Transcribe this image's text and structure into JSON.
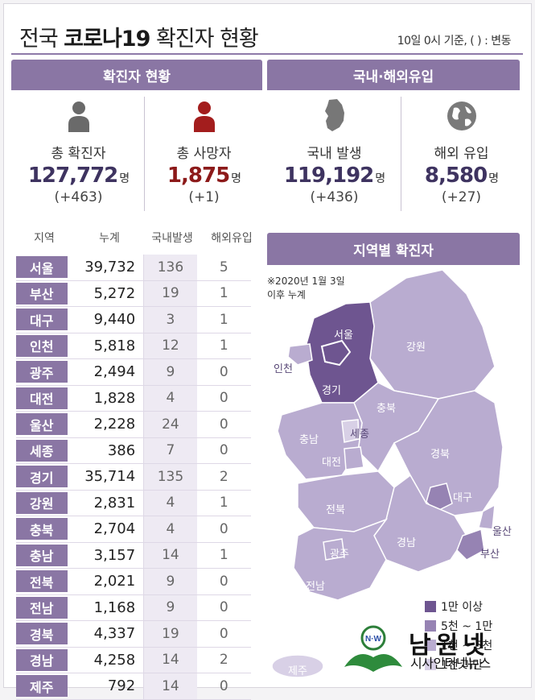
{
  "header": {
    "title_prefix": "전국",
    "title_bold": "코로나19",
    "title_suffix": "확진자 현황",
    "basis": "10일 0시 기준, ( ) : 변동"
  },
  "sections": {
    "status": "확진자 현황",
    "domestic_overseas": "국내·해외유입",
    "regional": "지역별 확진자"
  },
  "stats": [
    {
      "label": "총 확진자",
      "value": "127,772",
      "unit": "명",
      "change": "(+463)",
      "icon": "person-icon"
    },
    {
      "label": "총 사망자",
      "value": "1,875",
      "unit": "명",
      "change": "(+1)",
      "icon": "person-icon-red"
    },
    {
      "label": "국내 발생",
      "value": "119,192",
      "unit": "명",
      "change": "(+436)",
      "icon": "korea-map-icon"
    },
    {
      "label": "해외 유입",
      "value": "8,580",
      "unit": "명",
      "change": "(+27)",
      "icon": "globe-icon"
    }
  ],
  "table": {
    "columns": [
      "지역",
      "누계",
      "국내발생",
      "해외유입"
    ],
    "rows": [
      {
        "region": "서울",
        "total": "39,732",
        "domestic": "136",
        "import": "5"
      },
      {
        "region": "부산",
        "total": "5,272",
        "domestic": "19",
        "import": "1"
      },
      {
        "region": "대구",
        "total": "9,440",
        "domestic": "3",
        "import": "1"
      },
      {
        "region": "인천",
        "total": "5,818",
        "domestic": "12",
        "import": "1"
      },
      {
        "region": "광주",
        "total": "2,494",
        "domestic": "9",
        "import": "0"
      },
      {
        "region": "대전",
        "total": "1,828",
        "domestic": "4",
        "import": "0"
      },
      {
        "region": "울산",
        "total": "2,228",
        "domestic": "24",
        "import": "0"
      },
      {
        "region": "세종",
        "total": "386",
        "domestic": "7",
        "import": "0"
      },
      {
        "region": "경기",
        "total": "35,714",
        "domestic": "135",
        "import": "2"
      },
      {
        "region": "강원",
        "total": "2,831",
        "domestic": "4",
        "import": "1"
      },
      {
        "region": "충북",
        "total": "2,704",
        "domestic": "4",
        "import": "0"
      },
      {
        "region": "충남",
        "total": "3,157",
        "domestic": "14",
        "import": "1"
      },
      {
        "region": "전북",
        "total": "2,021",
        "domestic": "9",
        "import": "0"
      },
      {
        "region": "전남",
        "total": "1,168",
        "domestic": "9",
        "import": "0"
      },
      {
        "region": "경북",
        "total": "4,337",
        "domestic": "19",
        "import": "0"
      },
      {
        "region": "경남",
        "total": "4,258",
        "domestic": "14",
        "import": "2"
      },
      {
        "region": "제주",
        "total": "792",
        "domestic": "14",
        "import": "0"
      }
    ]
  },
  "map": {
    "note_line1": "※2020년 1월 3일",
    "note_line2": "이후 누계",
    "labels": {
      "seoul": "서울",
      "incheon": "인천",
      "gyeonggi": "경기",
      "gangwon": "강원",
      "chungbuk": "충북",
      "sejong": "세종",
      "chungnam": "충남",
      "daejeon": "대전",
      "gyeongbuk": "경북",
      "daegu": "대구",
      "jeonbuk": "전북",
      "ulsan": "울산",
      "gyeongnam": "경남",
      "busan": "부산",
      "gwangju": "광주",
      "jeonnam": "전남",
      "jeju": "제주"
    },
    "legend": [
      {
        "label": "1만 이상",
        "color": "#6e5590"
      },
      {
        "label": "5천 ~ 1만",
        "color": "#9683b3"
      },
      {
        "label": "1천 ~ 5천",
        "color": "#b9acd0"
      },
      {
        "label": "1천 미만",
        "color": "#d8d0e6"
      }
    ]
  },
  "brand": {
    "name": "남원넷",
    "sub": "시사인터넷뉴스",
    "logo_text": "N·W"
  },
  "colors": {
    "accent": "#8a76a4",
    "dark_number": "#3e3360",
    "death_red": "#8c1a1a"
  }
}
